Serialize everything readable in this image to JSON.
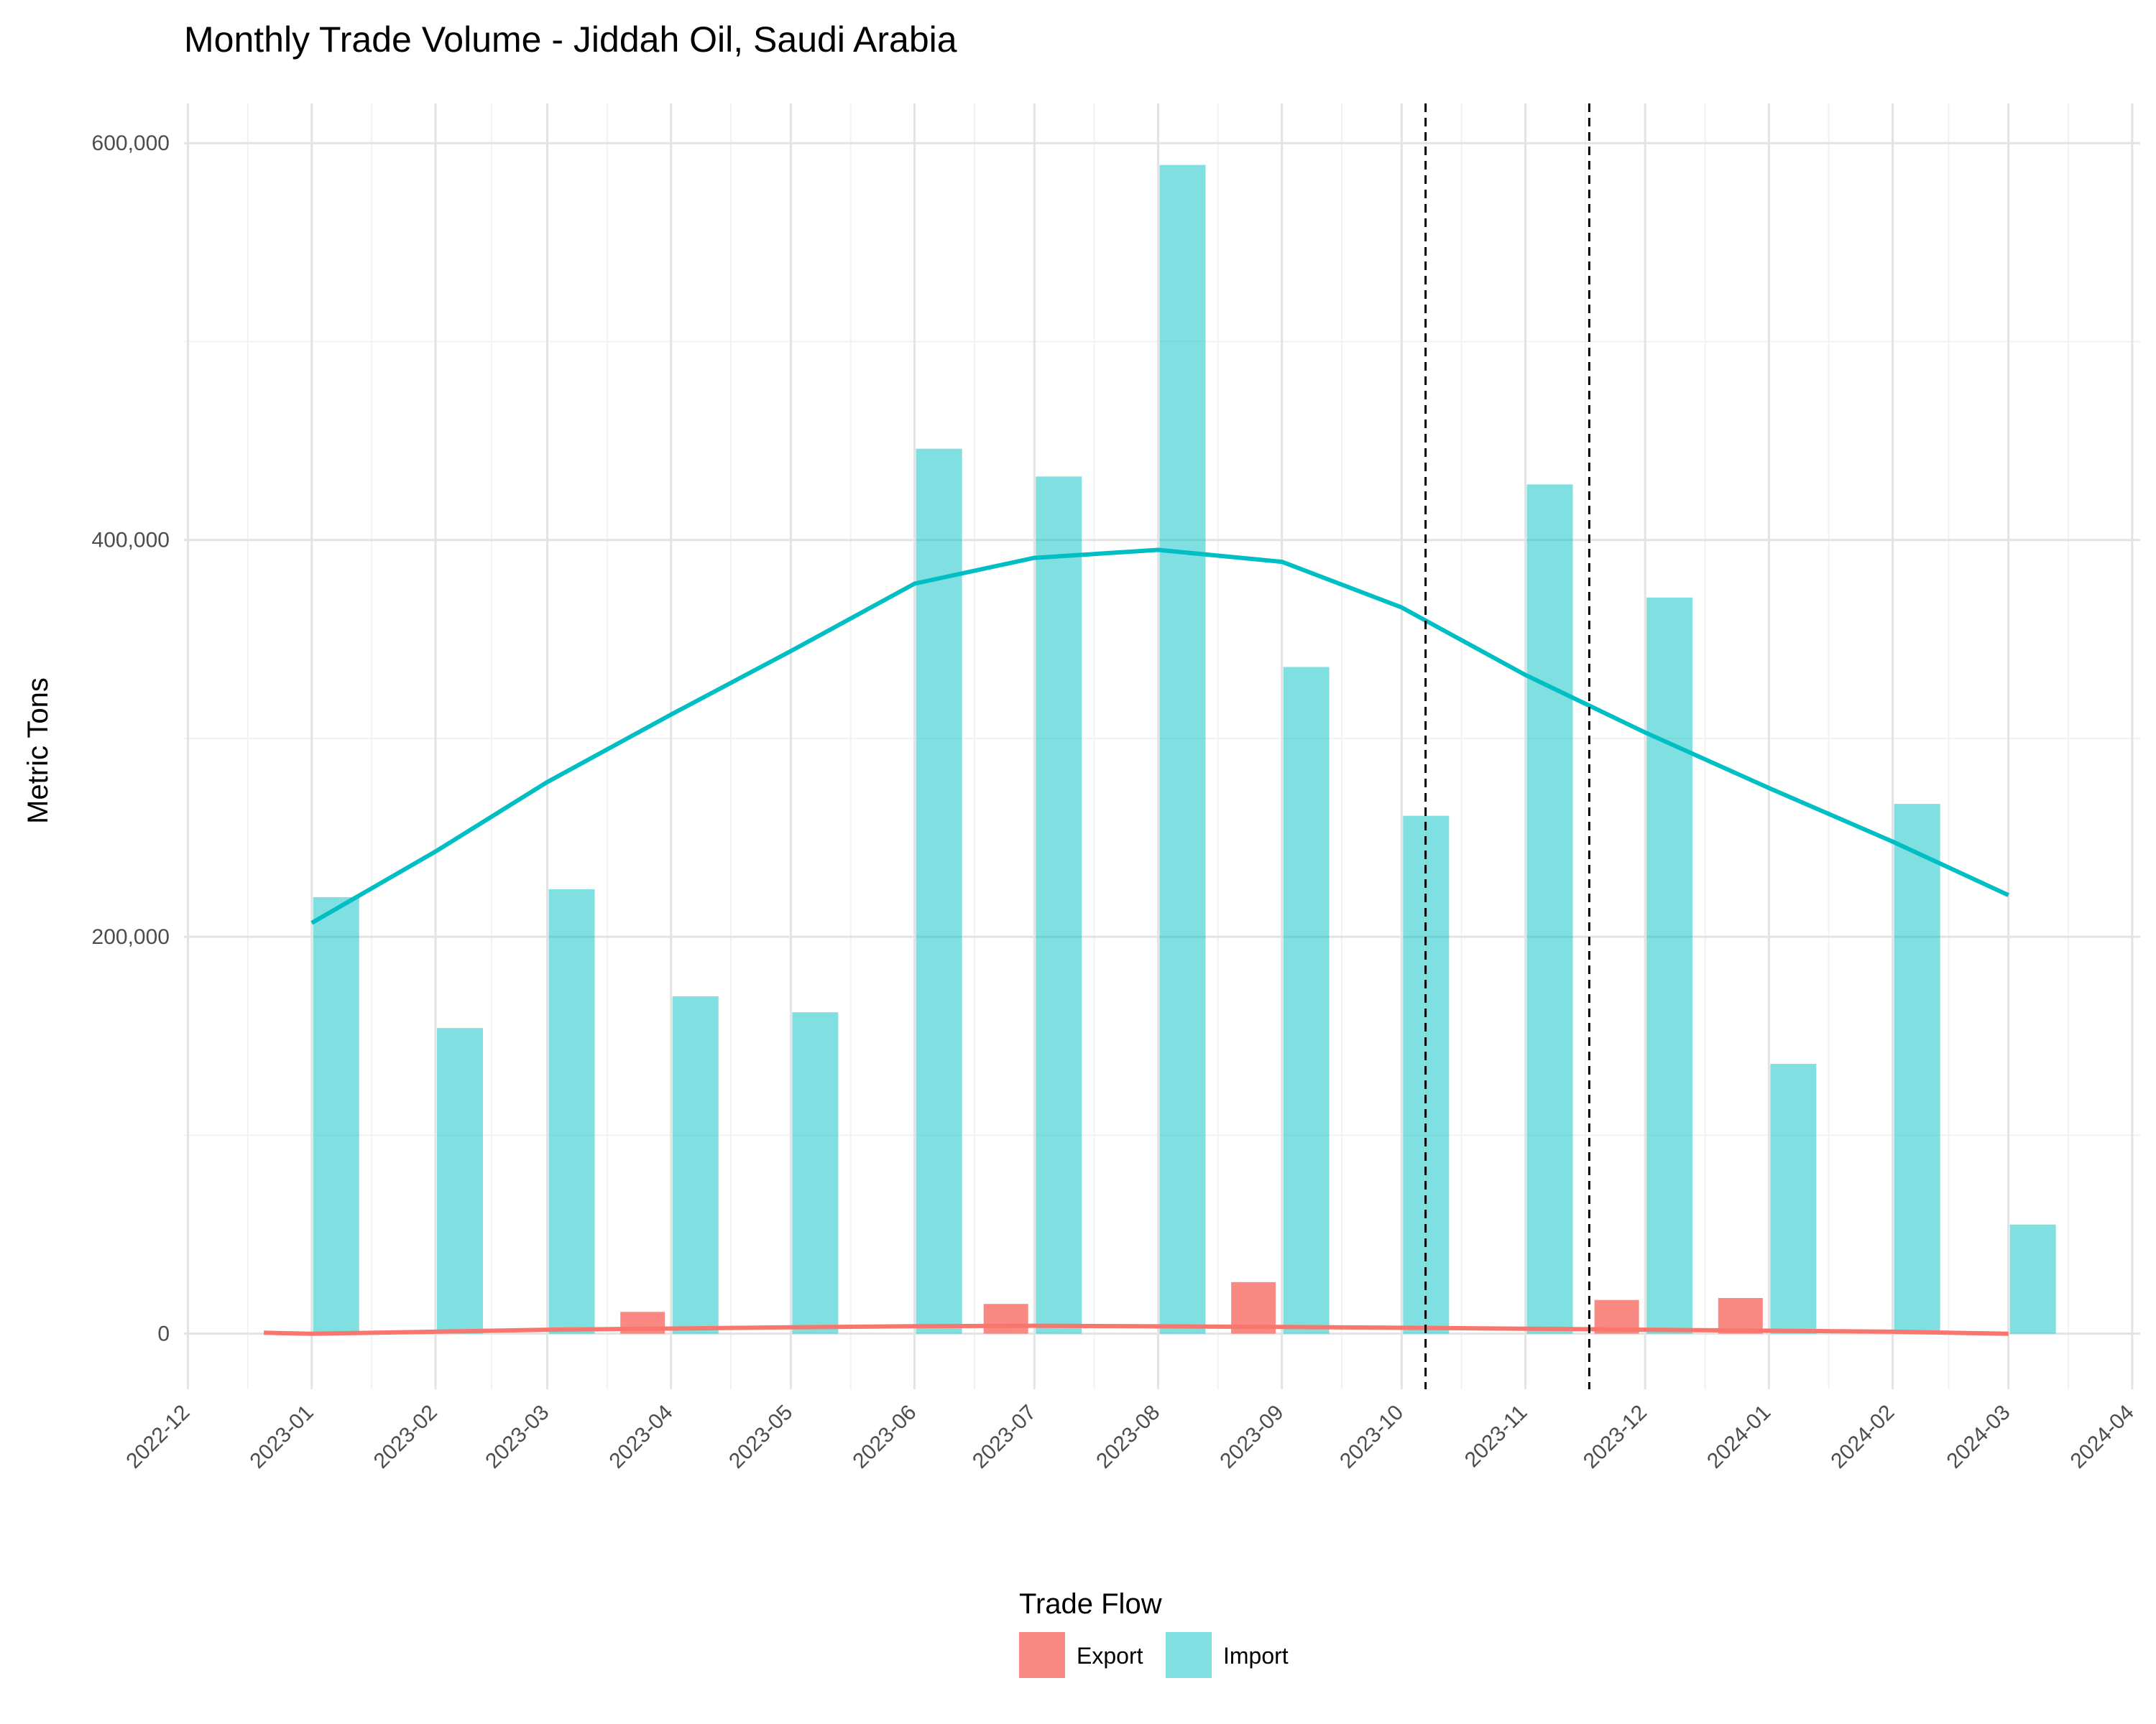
{
  "chart_data": {
    "type": "bar",
    "title": "Monthly Trade Volume - Jiddah Oil, Saudi Arabia",
    "xlabel": "",
    "ylabel": "Metric Tons",
    "x_ticks": [
      "2022-12",
      "2023-01",
      "2023-02",
      "2023-03",
      "2023-04",
      "2023-05",
      "2023-06",
      "2023-07",
      "2023-08",
      "2023-09",
      "2023-10",
      "2023-11",
      "2023-12",
      "2024-01",
      "2024-02",
      "2024-03",
      "2024-04"
    ],
    "y_ticks": [
      "0",
      "200,000",
      "400,000",
      "600,000"
    ],
    "ylim": [
      -28000,
      620000
    ],
    "xlim": [
      "2022-11-30",
      "2024-04-03"
    ],
    "grid": true,
    "legend": {
      "title": "Trade Flow",
      "position": "bottom",
      "entries": [
        {
          "name": "Export",
          "color": "#f8766d"
        },
        {
          "name": "Import",
          "color": "#00bfc4"
        }
      ]
    },
    "series": [
      {
        "name": "Export",
        "kind": "bar",
        "color": "#f8766d",
        "dates": [
          "2023-03-31",
          "2023-06-30",
          "2023-08-31",
          "2023-11-30",
          "2023-12-31"
        ],
        "values": [
          11000,
          15000,
          26000,
          17000,
          18000
        ]
      },
      {
        "name": "Import",
        "kind": "bar",
        "color": "#00bfc4",
        "dates": [
          "2023-01-01",
          "2023-02-01",
          "2023-03-01",
          "2023-04-01",
          "2023-05-01",
          "2023-06-01",
          "2023-07-01",
          "2023-08-01",
          "2023-09-01",
          "2023-10-01",
          "2023-11-01",
          "2023-12-01",
          "2024-01-01",
          "2024-02-01",
          "2024-03-01"
        ],
        "values": [
          220000,
          154000,
          224000,
          170000,
          162000,
          446000,
          432000,
          589000,
          336000,
          261000,
          428000,
          371000,
          136000,
          267000,
          55000
        ]
      },
      {
        "name": "Export",
        "kind": "trend-line",
        "color": "#f8766d",
        "dates": [
          "2022-12-20",
          "2023-01-01",
          "2023-02-01",
          "2023-03-01",
          "2023-04-01",
          "2023-05-01",
          "2023-06-01",
          "2023-07-01",
          "2023-08-01",
          "2023-09-01",
          "2023-10-01",
          "2023-11-01",
          "2023-12-01",
          "2024-01-01",
          "2024-02-01",
          "2024-03-01"
        ],
        "values": [
          500,
          0,
          1000,
          2000,
          2600,
          3200,
          3800,
          4000,
          3700,
          3400,
          3000,
          2500,
          2000,
          1500,
          1000,
          0
        ]
      },
      {
        "name": "Import",
        "kind": "trend-line",
        "color": "#00bfc4",
        "dates": [
          "2023-01-01",
          "2023-02-01",
          "2023-03-01",
          "2023-04-01",
          "2023-05-01",
          "2023-06-01",
          "2023-07-01",
          "2023-08-01",
          "2023-09-01",
          "2023-10-01",
          "2023-11-01",
          "2023-12-01",
          "2024-01-01",
          "2024-02-01",
          "2024-03-01"
        ],
        "values": [
          207000,
          243000,
          278000,
          312000,
          344000,
          378000,
          391000,
          395000,
          389000,
          366000,
          332000,
          303000,
          275000,
          248000,
          221000
        ]
      }
    ],
    "reference_lines": [
      "2023-10-07",
      "2023-11-17"
    ]
  }
}
